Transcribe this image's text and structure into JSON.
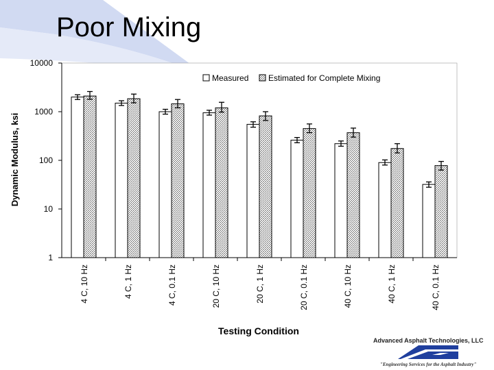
{
  "slide": {
    "title": "Poor Mixing"
  },
  "footer": {
    "company_name": "Advanced Asphalt Technologies, LLC",
    "tagline": "\"Engineering Services for the Asphalt Industry\""
  },
  "colors": {
    "measured_fill": "#ffffff",
    "estimated_fill": "#cfcfcf",
    "plot_bg": "#ffffff",
    "bar_stroke": "#000000",
    "swoosh": "#c9d4f0",
    "logo_blue": "#1f3f9e"
  },
  "chart_data": {
    "type": "bar",
    "xlabel": "Testing Condition",
    "ylabel": "Dynamic Modulus, ksi",
    "yscale": "log",
    "ylim": [
      1,
      10000
    ],
    "yticks": [
      1,
      10,
      100,
      1000,
      10000
    ],
    "ytick_labels": [
      "1",
      "10",
      "100",
      "1000",
      "10000"
    ],
    "legend_position": "top-right",
    "categories": [
      "4 C, 10 Hz",
      "4 C, 1 Hz",
      "4 C, 0.1 Hz",
      "20 C, 10 Hz",
      "20 C, 1 Hz",
      "20 C, 0.1 Hz",
      "40 C, 10 Hz",
      "40 C, 1 Hz",
      "40 C, 0.1 Hz"
    ],
    "series": [
      {
        "name": "Measured",
        "values": [
          2000,
          1500,
          1000,
          950,
          550,
          260,
          220,
          90,
          32
        ],
        "error_low": [
          1780,
          1340,
          890,
          850,
          480,
          230,
          195,
          80,
          28
        ],
        "error_high": [
          2230,
          1680,
          1120,
          1070,
          620,
          295,
          250,
          102,
          36
        ]
      },
      {
        "name": "Estimated for Complete Mixing",
        "values": [
          2100,
          1850,
          1450,
          1200,
          820,
          450,
          370,
          175,
          78
        ],
        "error_low": [
          1800,
          1520,
          1200,
          980,
          660,
          370,
          300,
          142,
          63
        ],
        "error_high": [
          2600,
          2300,
          1780,
          1560,
          1000,
          560,
          460,
          220,
          95
        ]
      }
    ]
  }
}
